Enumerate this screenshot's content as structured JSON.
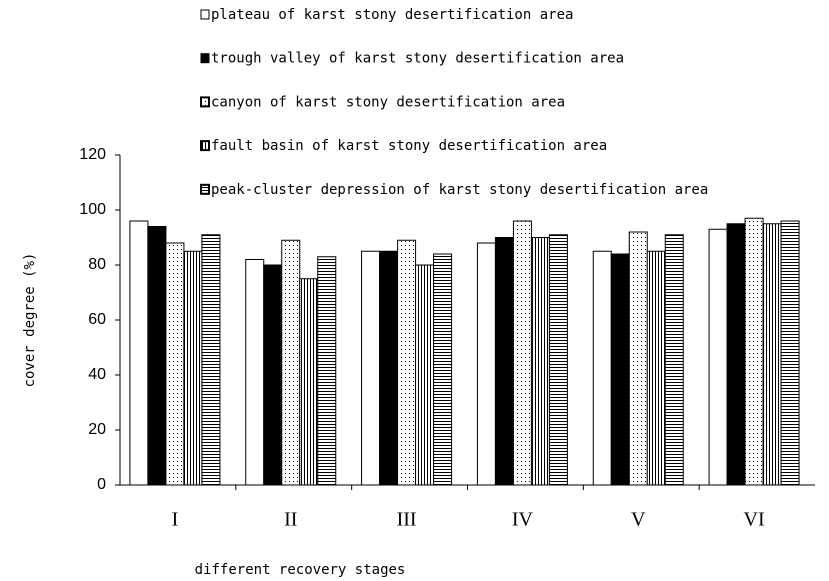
{
  "chart_data": {
    "type": "bar",
    "categories": [
      "I",
      "II",
      "III",
      "IV",
      "V",
      "VI"
    ],
    "series": [
      {
        "name": "plateau of karst stony desertification area",
        "color": "#ffffff",
        "pattern": "solid",
        "values": [
          96,
          82,
          85,
          88,
          85,
          93
        ]
      },
      {
        "name": "trough valley of karst stony desertification area",
        "color": "#000000",
        "pattern": "solid",
        "values": [
          94,
          80,
          85,
          90,
          84,
          95
        ]
      },
      {
        "name": "canyon of karst stony desertification area",
        "color": "#ffffff",
        "pattern": "dots",
        "values": [
          88,
          89,
          89,
          96,
          92,
          97
        ]
      },
      {
        "name": "fault basin of karst stony desertification area",
        "color": "#ffffff",
        "pattern": "vertical",
        "values": [
          85,
          75,
          80,
          90,
          85,
          95
        ]
      },
      {
        "name": "peak-cluster depression of karst stony desertification area",
        "color": "#ffffff",
        "pattern": "horizontal",
        "values": [
          91,
          83,
          84,
          91,
          91,
          96
        ]
      }
    ],
    "xlabel": "different recovery stages",
    "ylabel": "cover degree (%)",
    "ylim": [
      0,
      120
    ],
    "yticks": [
      0,
      20,
      40,
      60,
      80,
      100,
      120
    ],
    "legend": "top"
  }
}
